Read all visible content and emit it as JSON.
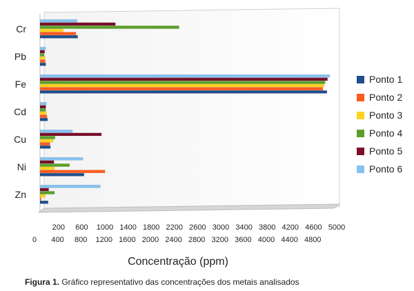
{
  "chart_data": {
    "type": "bar",
    "orientation": "horizontal",
    "categories": [
      "Cr",
      "Pb",
      "Fe",
      "Cd",
      "Cu",
      "Ni",
      "Zn"
    ],
    "series": [
      {
        "name": "Ponto 1",
        "color": "#1f4e8c",
        "values": [
          650,
          100,
          4950,
          130,
          180,
          760,
          140
        ]
      },
      {
        "name": "Ponto 2",
        "color": "#ff5a1f",
        "values": [
          620,
          90,
          4880,
          120,
          170,
          1120,
          20
        ]
      },
      {
        "name": "Ponto 3",
        "color": "#ffd21f",
        "values": [
          400,
          90,
          4900,
          110,
          230,
          250,
          90
        ]
      },
      {
        "name": "Ponto 4",
        "color": "#5a9f2a",
        "values": [
          2400,
          70,
          4920,
          100,
          260,
          510,
          250
        ]
      },
      {
        "name": "Ponto 5",
        "color": "#7a0f2a",
        "values": [
          1300,
          80,
          4960,
          100,
          1060,
          240,
          150
        ]
      },
      {
        "name": "Ponto 6",
        "color": "#86c2ef",
        "values": [
          640,
          100,
          5000,
          110,
          560,
          740,
          1040
        ]
      }
    ],
    "xlabel": "Concentração (ppm)",
    "ylabel": "",
    "xlim": [
      0,
      5000
    ],
    "xticks_top": [
      "200",
      "600",
      "1000",
      "1400",
      "1800",
      "2200",
      "2600",
      "3000",
      "3400",
      "3800",
      "4200",
      "4600",
      "5000"
    ],
    "xticks_bottom": [
      "0",
      "400",
      "800",
      "1200",
      "1600",
      "2000",
      "2400",
      "2800",
      "3200",
      "3600",
      "4000",
      "4400",
      "4800"
    ],
    "legend_position": "right",
    "grid": false
  },
  "caption": {
    "label": "Figura 1.",
    "text": " Gráfico representativo das concentrações dos metais analisados"
  }
}
